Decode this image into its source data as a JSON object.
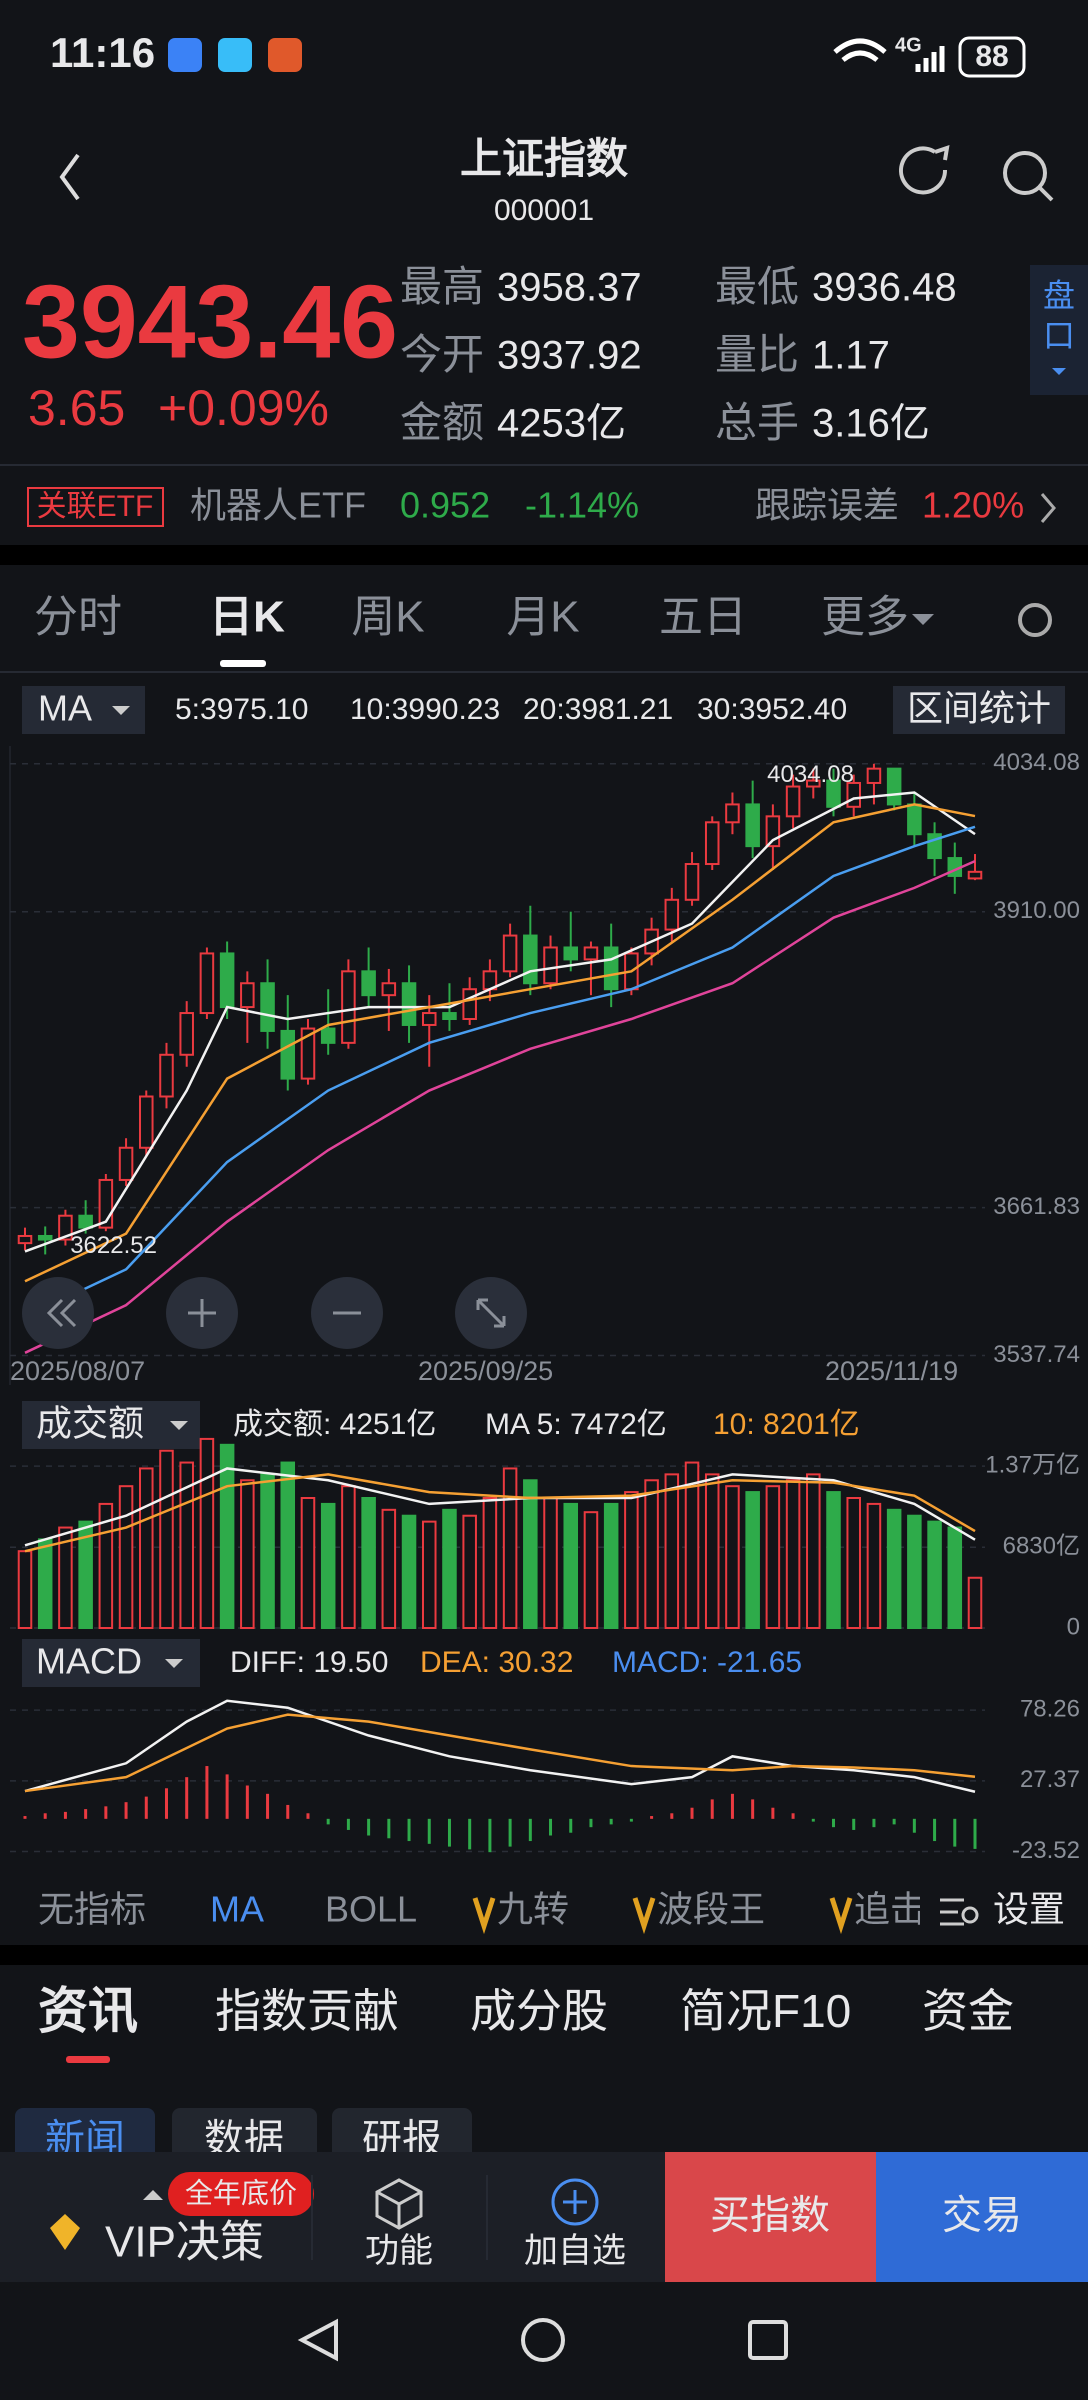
{
  "status_bar": {
    "time": "11:16",
    "network": "4G",
    "battery": "88"
  },
  "header": {
    "title": "上证指数",
    "code": "000001"
  },
  "quote": {
    "price": "3943.46",
    "change": "3.65",
    "change_pct": "+0.09%",
    "stats": [
      {
        "label": "最高",
        "value": "3958.37"
      },
      {
        "label": "最低",
        "value": "3936.48"
      },
      {
        "label": "今开",
        "value": "3937.92"
      },
      {
        "label": "量比",
        "value": "1.17"
      },
      {
        "label": "金额",
        "value": "4253亿"
      },
      {
        "label": "总手",
        "value": "3.16亿"
      }
    ],
    "side_button": [
      "盘",
      "口"
    ]
  },
  "etf": {
    "tag": "关联ETF",
    "name": "机器人ETF",
    "price": "0.952",
    "change": "-1.14%",
    "error_label": "跟踪误差",
    "error_value": "1.20%"
  },
  "period_tabs": [
    "分时",
    "日K",
    "周K",
    "月K",
    "五日",
    "更多"
  ],
  "kline": {
    "indicator": "MA",
    "legend": [
      "5:3975.10",
      "10:3990.23",
      "20:3981.21",
      "30:3952.40"
    ],
    "range_button": "区间统计",
    "ylim": [
      3513,
      4049
    ],
    "yticks": [
      4034.08,
      {
        "value": 3910,
        "label": "3910.00"
      },
      3661.83,
      3537.74
    ],
    "dates": [
      "2025/08/07",
      "2025/09/25",
      "2025/11/19"
    ],
    "high_label": 4034.08,
    "low_label": 3622.52,
    "candles": [
      [
        3632,
        3645,
        3626,
        3638
      ],
      [
        3638,
        3646,
        3622.52,
        3635
      ],
      [
        3635,
        3660,
        3630,
        3655
      ],
      [
        3655,
        3668,
        3640,
        3645
      ],
      [
        3645,
        3690,
        3642,
        3685
      ],
      [
        3685,
        3720,
        3680,
        3712
      ],
      [
        3712,
        3760,
        3705,
        3755
      ],
      [
        3755,
        3800,
        3745,
        3790
      ],
      [
        3790,
        3835,
        3780,
        3825
      ],
      [
        3825,
        3880,
        3820,
        3875
      ],
      [
        3875,
        3885,
        3820,
        3830
      ],
      [
        3830,
        3860,
        3800,
        3850
      ],
      [
        3850,
        3870,
        3795,
        3810
      ],
      [
        3810,
        3840,
        3760,
        3770
      ],
      [
        3770,
        3820,
        3765,
        3812
      ],
      [
        3812,
        3845,
        3790,
        3800
      ],
      [
        3800,
        3870,
        3795,
        3860
      ],
      [
        3860,
        3880,
        3830,
        3840
      ],
      [
        3840,
        3862,
        3810,
        3850
      ],
      [
        3850,
        3865,
        3800,
        3815
      ],
      [
        3815,
        3840,
        3780,
        3825
      ],
      [
        3825,
        3850,
        3810,
        3820
      ],
      [
        3820,
        3855,
        3815,
        3845
      ],
      [
        3845,
        3870,
        3835,
        3860
      ],
      [
        3860,
        3900,
        3855,
        3890
      ],
      [
        3890,
        3915,
        3840,
        3850
      ],
      [
        3850,
        3890,
        3845,
        3880
      ],
      [
        3880,
        3910,
        3860,
        3870
      ],
      [
        3870,
        3885,
        3840,
        3880
      ],
      [
        3880,
        3900,
        3830,
        3845
      ],
      [
        3845,
        3880,
        3840,
        3875
      ],
      [
        3875,
        3905,
        3865,
        3895
      ],
      [
        3895,
        3930,
        3885,
        3920
      ],
      [
        3920,
        3960,
        3915,
        3950
      ],
      [
        3950,
        3990,
        3945,
        3985
      ],
      [
        3985,
        4010,
        3975,
        4000
      ],
      [
        4000,
        4020,
        3955,
        3965
      ],
      [
        3965,
        4000,
        3945,
        3990
      ],
      [
        3990,
        4025,
        3980,
        4015
      ],
      [
        4015,
        4030,
        4005,
        4020
      ],
      [
        4020,
        4030,
        3990,
        3998
      ],
      [
        3998,
        4025,
        3990,
        4018
      ],
      [
        4018,
        4034.08,
        4000,
        4030
      ],
      [
        4030,
        4030,
        3995,
        4000
      ],
      [
        4000,
        4010,
        3965,
        3975
      ],
      [
        3975,
        3985,
        3940,
        3955
      ],
      [
        3955,
        3968,
        3925,
        3940
      ],
      [
        3937.92,
        3958.37,
        3936.48,
        3943.46
      ]
    ],
    "lines": [
      {
        "color": "#f2f2f2",
        "x": [
          0,
          4,
          8,
          10,
          13,
          17,
          21,
          25,
          29,
          33,
          37,
          41,
          44,
          47
        ],
        "values": [
          3625,
          3650,
          3760,
          3830,
          3820,
          3830,
          3830,
          3860,
          3870,
          3900,
          3970,
          4005,
          4010,
          3975.1
        ]
      },
      {
        "color": "#f5a033",
        "x": [
          0,
          5,
          10,
          15,
          20,
          25,
          30,
          35,
          40,
          44,
          47
        ],
        "values": [
          3600,
          3640,
          3770,
          3815,
          3830,
          3845,
          3860,
          3920,
          3985,
          4000,
          3990.23
        ]
      },
      {
        "color": "#4a9ef0",
        "x": [
          0,
          5,
          10,
          15,
          20,
          25,
          30,
          35,
          40,
          44,
          47
        ],
        "values": [
          3570,
          3610,
          3700,
          3760,
          3800,
          3825,
          3845,
          3880,
          3940,
          3965,
          3981.21
        ]
      },
      {
        "color": "#e0449a",
        "x": [
          0,
          5,
          10,
          15,
          20,
          25,
          30,
          35,
          40,
          44,
          47
        ],
        "values": [
          3540,
          3580,
          3650,
          3710,
          3760,
          3795,
          3820,
          3850,
          3905,
          3930,
          3952.4
        ]
      }
    ]
  },
  "volume": {
    "indicator": "成交额",
    "legend": [
      "成交额: 4251亿",
      "MA 5: 7472亿",
      "10: 8201亿"
    ],
    "ylim": [
      0,
      15400
    ],
    "yticks": [
      {
        "value": 13700,
        "label": "1.37万亿"
      },
      {
        "value": 6830,
        "label": "6830亿"
      },
      0
    ],
    "values": [
      6500,
      7500,
      8500,
      9000,
      10500,
      12000,
      13500,
      15000,
      14000,
      16000,
      15500,
      12500,
      13000,
      14000,
      11000,
      10500,
      12000,
      11000,
      10000,
      9500,
      9000,
      10000,
      9500,
      11000,
      13500,
      12500,
      11000,
      10500,
      9800,
      10500,
      11500,
      12500,
      13000,
      14000,
      13000,
      12000,
      11500,
      12000,
      12500,
      13000,
      11500,
      11000,
      10500,
      10000,
      9500,
      9000,
      8500,
      4251
    ],
    "lines": [
      {
        "color": "#f2f2f2",
        "x": [
          0,
          5,
          10,
          15,
          20,
          25,
          30,
          35,
          40,
          44,
          47
        ],
        "values": [
          7000,
          9500,
          13500,
          12500,
          10500,
          11000,
          11000,
          13000,
          12500,
          10500,
          7472
        ]
      },
      {
        "color": "#f5a033",
        "x": [
          0,
          5,
          10,
          15,
          20,
          25,
          30,
          35,
          40,
          44,
          47
        ],
        "values": [
          6500,
          8500,
          12000,
          13000,
          11500,
          11000,
          11200,
          12500,
          12300,
          11200,
          8201
        ]
      }
    ]
  },
  "macd": {
    "indicator": "MACD",
    "legend": [
      "DIFF: 19.50",
      "DEA: 30.32",
      "MACD: -21.65"
    ],
    "ylim": [
      -35.4,
      97.8
    ],
    "yticks": [
      78.26,
      27.37,
      -23.52
    ],
    "histogram": [
      2,
      4,
      5,
      7,
      9,
      12,
      16,
      22,
      30,
      38,
      32,
      24,
      18,
      10,
      4,
      -4,
      -8,
      -12,
      -14,
      -16,
      -18,
      -20,
      -22,
      -24,
      -20,
      -16,
      -12,
      -10,
      -6,
      -4,
      -2,
      2,
      4,
      8,
      14,
      18,
      14,
      8,
      4,
      -2,
      -6,
      -8,
      -6,
      -4,
      -10,
      -16,
      -20,
      -21.65
    ],
    "lines": [
      {
        "color": "#f2f2f2",
        "x": [
          0,
          5,
          8,
          10,
          13,
          17,
          21,
          25,
          30,
          33,
          35,
          38,
          41,
          44,
          47
        ],
        "values": [
          20,
          40,
          70,
          85,
          80,
          60,
          45,
          35,
          25,
          30,
          45,
          38,
          35,
          30,
          19.5
        ]
      },
      {
        "color": "#f5a033",
        "x": [
          0,
          5,
          10,
          13,
          17,
          21,
          25,
          30,
          35,
          38,
          41,
          44,
          47
        ],
        "values": [
          20,
          30,
          65,
          75,
          70,
          60,
          50,
          38,
          35,
          38,
          37,
          35,
          30.32
        ]
      }
    ]
  },
  "indicator_tabs": [
    "无指标",
    "MA",
    "BOLL",
    "九转",
    "波段王",
    "追击",
    "设置"
  ],
  "info_tabs": [
    "资讯",
    "指数贡献",
    "成分股",
    "简况F10",
    "资金"
  ],
  "sub_tabs": [
    "新闻",
    "数据",
    "研报"
  ],
  "bottom_bar": {
    "vip": "VIP决策",
    "badge": "全年底价",
    "function": "功能",
    "add": "加自选",
    "buy": "买指数",
    "trade": "交易"
  }
}
